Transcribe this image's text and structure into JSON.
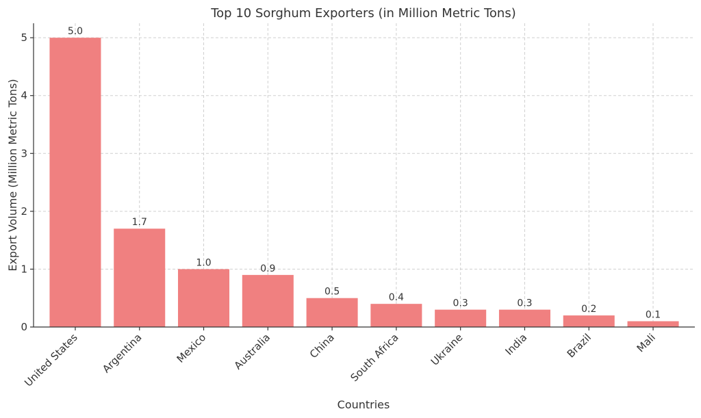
{
  "chart_data": {
    "type": "bar",
    "title": "Top 10 Sorghum Exporters (in Million Metric Tons)",
    "xlabel": "Countries",
    "ylabel": "Export Volume (Million Metric Tons)",
    "categories": [
      "United States",
      "Argentina",
      "Mexico",
      "Australia",
      "China",
      "South Africa",
      "Ukraine",
      "India",
      "Brazil",
      "Mali"
    ],
    "values": [
      5.0,
      1.7,
      1.0,
      0.9,
      0.5,
      0.4,
      0.3,
      0.3,
      0.2,
      0.1
    ],
    "value_labels": [
      "5.0",
      "1.7",
      "1.0",
      "0.9",
      "0.5",
      "0.4",
      "0.3",
      "0.3",
      "0.2",
      "0.1"
    ],
    "ylim": [
      0,
      5.25
    ],
    "yticks": [
      0,
      1,
      2,
      3,
      4,
      5
    ],
    "grid": true,
    "bar_color": "#f08080"
  }
}
